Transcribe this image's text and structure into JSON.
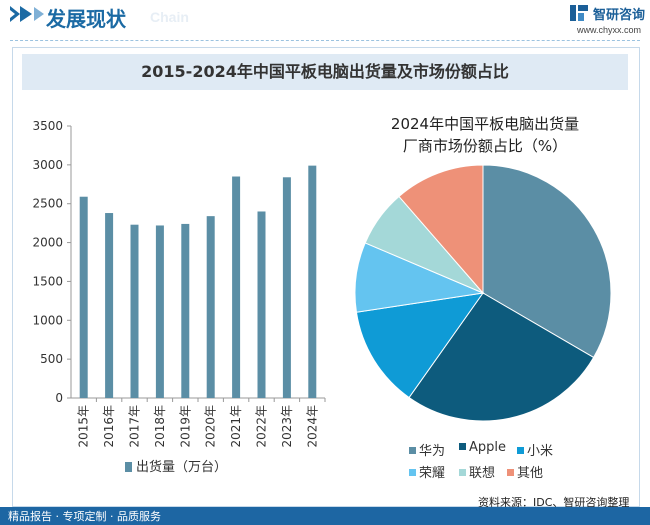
{
  "header": {
    "title": "发展现状",
    "subtitle": "Chain",
    "brand_name": "智研咨询",
    "brand_url": "www.chyxx.com"
  },
  "main_title": "2015-2024年中国平板电脑出货量及市场份额占比",
  "footer": {
    "left_text": "精品报告 · 专项定制 · 品质服务",
    "source": "资料来源：IDC、智研咨询整理"
  },
  "colors": {
    "accent": "#1b6aa4",
    "footer": "#1d66a3",
    "bar": "#5b8ea5"
  },
  "chart_data": [
    {
      "type": "bar",
      "categories": [
        "2015年",
        "2016年",
        "2017年",
        "2018年",
        "2019年",
        "2020年",
        "2021年",
        "2022年",
        "2023年",
        "2024年"
      ],
      "series": [
        {
          "name": "出货量（万台）",
          "values": [
            2590,
            2380,
            2230,
            2220,
            2240,
            2340,
            2850,
            2400,
            2840,
            2990
          ]
        }
      ],
      "ylim": [
        0,
        3500
      ],
      "yticks": [
        0,
        500,
        1000,
        1500,
        2000,
        2500,
        3000,
        3500
      ],
      "legend": "bottom",
      "grid": false
    },
    {
      "type": "pie",
      "title_lines": [
        "2024年中国平板电脑出货量",
        "厂商市场份额占比（%）"
      ],
      "labels": [
        "华为",
        "Apple",
        "小米",
        "荣耀",
        "联想",
        "其他"
      ],
      "values": [
        33.4,
        26.4,
        12.8,
        8.8,
        7.2,
        11.4
      ],
      "colors": [
        "#5b8ea5",
        "#0d5b7d",
        "#0f9bd6",
        "#64c4f0",
        "#a4d8d8",
        "#ee9178"
      ],
      "legend": "bottom"
    }
  ]
}
